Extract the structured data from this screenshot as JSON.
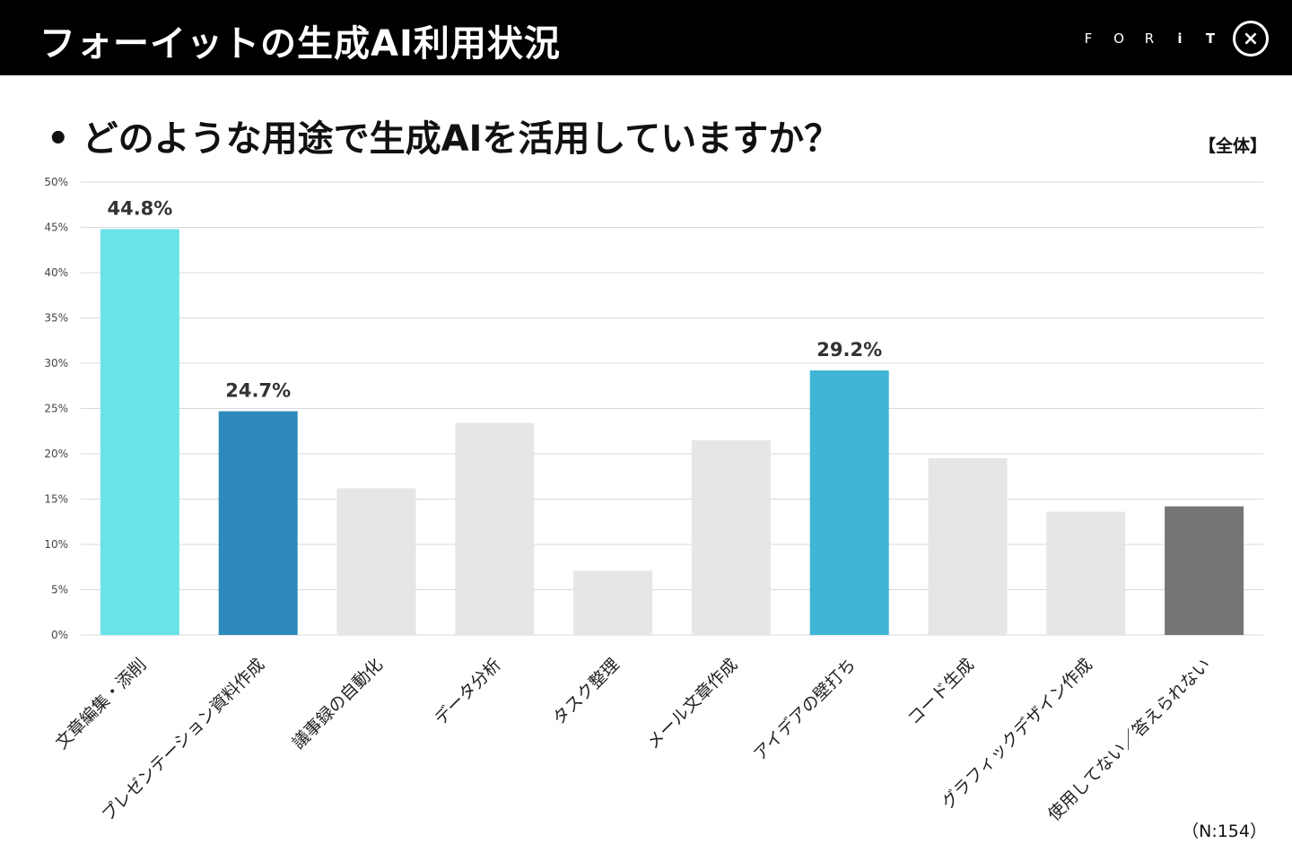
{
  "header": {
    "title": "フォーイットの生成AI利用状況",
    "logo_letters": [
      "F",
      "O",
      "R",
      "i",
      "T"
    ],
    "logo_badge": "×"
  },
  "question": {
    "bullet": "•",
    "text": "どのような用途で生成AIを活用していますか？"
  },
  "scope_label": "【全体】",
  "sample_label": "（N:154）",
  "colors": {
    "header_bg": "#000000",
    "header_text": "#ffffff",
    "grid": "#d9d9d9",
    "bar_default": "#e6e6e6"
  },
  "chart_data": {
    "type": "bar",
    "title": "どのような用途で生成AIを活用していますか？",
    "xlabel": "",
    "ylabel": "",
    "ylim": [
      0,
      50
    ],
    "y_ticks": [
      0,
      5,
      10,
      15,
      20,
      25,
      30,
      35,
      40,
      45,
      50
    ],
    "tick_suffix": "%",
    "grid": true,
    "categories": [
      "文章編集・添削",
      "プレゼンテーション資料作成",
      "議事録の自動化",
      "データ分析",
      "タスク整理",
      "メール文章作成",
      "アイデアの壁打ち",
      "コード生成",
      "グラフィックデザイン作成",
      "使用してない／答えられない"
    ],
    "values": [
      44.8,
      24.7,
      16.2,
      23.4,
      7.1,
      21.5,
      29.2,
      19.5,
      13.6,
      14.2
    ],
    "bar_colors": [
      "#6ae3e8",
      "#2e8aba",
      "#e6e6e6",
      "#e6e6e6",
      "#e6e6e6",
      "#e6e6e6",
      "#40b5d6",
      "#e6e6e6",
      "#e6e6e6",
      "#767676"
    ],
    "data_labels": [
      {
        "index": 0,
        "text": "44.8%"
      },
      {
        "index": 1,
        "text": "24.7%"
      },
      {
        "index": 6,
        "text": "29.2%"
      }
    ]
  }
}
